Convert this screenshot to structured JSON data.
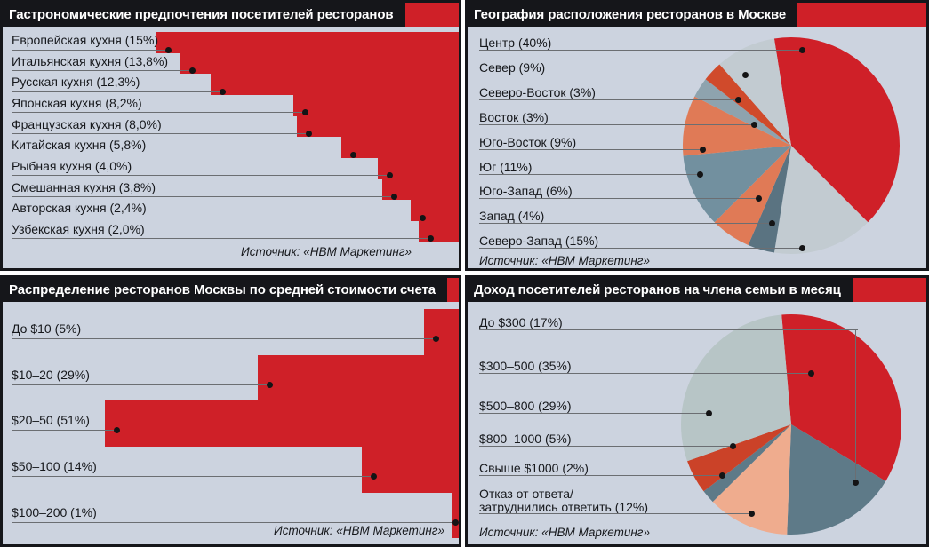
{
  "colors": {
    "red": "#cf2028",
    "panel_bg": "#ccd3df",
    "frame": "#15161a",
    "title_text": "#ffffff",
    "label_text": "#16181c",
    "leader_line": "#6b6e72",
    "dot": "#141415"
  },
  "chart_data": [
    {
      "id": "cuisine-preferences",
      "type": "bar",
      "title": "Гастрономические предпочтения посетителей ресторанов",
      "unit": "%",
      "layout_hint": "right-anchored staircase bars, leader lines with dots",
      "items": [
        {
          "label": "Европейская кухня (15%)",
          "value": 15
        },
        {
          "label": "Итальянская кухня (13,8%)",
          "value": 13.8
        },
        {
          "label": "Русская кухня (12,3%)",
          "value": 12.3
        },
        {
          "label": "Японская кухня (8,2%)",
          "value": 8.2
        },
        {
          "label": "Французская кухня (8,0%)",
          "value": 8
        },
        {
          "label": "Китайская кухня (5,8%)",
          "value": 5.8
        },
        {
          "label": "Рыбная кухня (4,0%)",
          "value": 4
        },
        {
          "label": "Смешанная кухня (3,8%)",
          "value": 3.8
        },
        {
          "label": "Авторская кухня (2,4%)",
          "value": 2.4
        },
        {
          "label": "Узбекская кухня (2,0%)",
          "value": 2
        }
      ],
      "source": "Источник: «НВМ Маркетинг»"
    },
    {
      "id": "restaurant-geography",
      "type": "pie",
      "title": "География расположения ресторанов в Москве",
      "unit": "%",
      "legend_position": "left column, leader lines with dots",
      "items": [
        {
          "label": "Центр (40%)",
          "value": 40,
          "color": "#cf2028"
        },
        {
          "label": "Север (9%)",
          "value": 9,
          "color": "#c2cbd1"
        },
        {
          "label": "Северо-Восток (3%)",
          "value": 3,
          "color": "#d04a2b"
        },
        {
          "label": "Восток (3%)",
          "value": 3,
          "color": "#8ea3ae"
        },
        {
          "label": "Юго-Восток (9%)",
          "value": 9,
          "color": "#e07a56"
        },
        {
          "label": "Юг (11%)",
          "value": 11,
          "color": "#72909f"
        },
        {
          "label": "Юго-Запад (6%)",
          "value": 6,
          "color": "#e07a56"
        },
        {
          "label": "Запад (4%)",
          "value": 4,
          "color": "#5a7381"
        },
        {
          "label": "Северо-Запад (15%)",
          "value": 15,
          "color": "#c2cbd1"
        }
      ],
      "source": "Источник: «НВМ Маркетинг»"
    },
    {
      "id": "average-bill-distribution",
      "type": "bar",
      "title": "Распределение ресторанов Москвы по средней стоимости счета",
      "unit": "%",
      "layout_hint": "right-anchored staircase bars, leader lines with dots",
      "items": [
        {
          "label": "До $10 (5%)",
          "value": 5
        },
        {
          "label": "$10–20 (29%)",
          "value": 29
        },
        {
          "label": "$20–50 (51%)",
          "value": 51
        },
        {
          "label": "$50–100 (14%)",
          "value": 14
        },
        {
          "label": "$100–200 (1%)",
          "value": 1
        }
      ],
      "source": "Источник: «НВМ Маркетинг»"
    },
    {
      "id": "visitor-income",
      "type": "pie",
      "title": "Доход посетителей ресторанов на члена семьи в месяц",
      "unit": "%",
      "legend_position": "left column, leader lines with dots",
      "items": [
        {
          "label": "До $300 (17%)",
          "value": 17,
          "color": "#5e7a88"
        },
        {
          "label": "$300–500 (35%)",
          "value": 35,
          "color": "#cf2028"
        },
        {
          "label": "$500–800 (29%)",
          "value": 29,
          "color": "#b7c5c6"
        },
        {
          "label": "$800–1000 (5%)",
          "value": 5,
          "color": "#cb4228"
        },
        {
          "label": "Свыше $1000 (2%)",
          "value": 2,
          "color": "#5e7a88"
        },
        {
          "label": "Отказ от ответа/\nзатруднились ответить (12%)",
          "value": 12,
          "color": "#efac8e"
        }
      ],
      "source": "Источник: «НВМ Маркетинг»"
    }
  ]
}
